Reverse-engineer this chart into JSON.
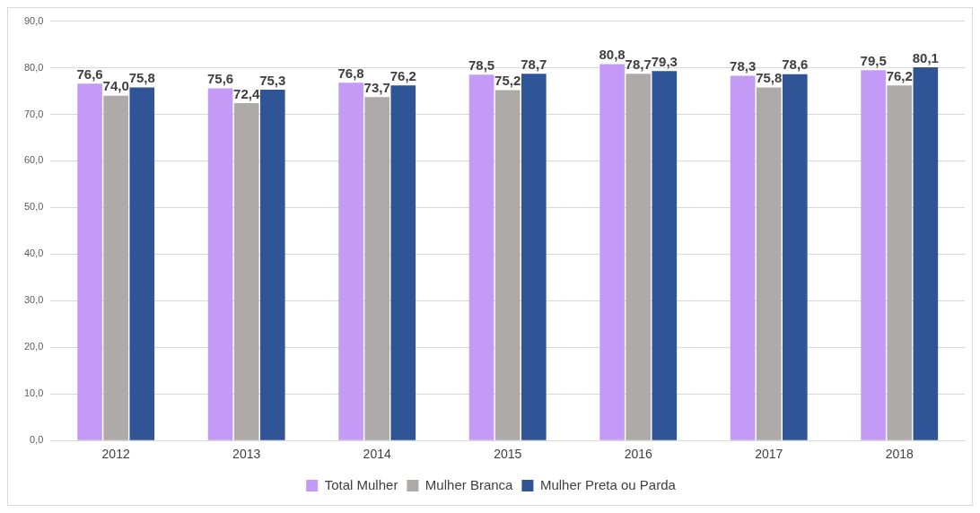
{
  "chart_data": {
    "type": "bar",
    "categories": [
      "2012",
      "2013",
      "2014",
      "2015",
      "2016",
      "2017",
      "2018"
    ],
    "series": [
      {
        "name": "Total Mulher",
        "color": "#c39bf7",
        "values": [
          76.6,
          75.6,
          76.8,
          78.5,
          80.8,
          78.3,
          79.5
        ],
        "value_labels": [
          "76,6",
          "75,6",
          "76,8",
          "78,5",
          "80,8",
          "78,3",
          "79,5"
        ]
      },
      {
        "name": "Mulher Branca",
        "color": "#aeaaaa",
        "values": [
          74.0,
          72.4,
          73.7,
          75.2,
          78.7,
          75.8,
          76.2
        ],
        "value_labels": [
          "74,0",
          "72,4",
          "73,7",
          "75,2",
          "78,7",
          "75,8",
          "76,2"
        ]
      },
      {
        "name": "Mulher Preta ou Parda",
        "color": "#2f5597",
        "values": [
          75.8,
          75.3,
          76.2,
          78.7,
          79.3,
          78.6,
          80.1
        ],
        "value_labels": [
          "75,8",
          "75,3",
          "76,2",
          "78,7",
          "79,3",
          "78,6",
          "80,1"
        ]
      }
    ],
    "ylim": [
      0,
      90
    ],
    "yticks": [
      {
        "value": 0,
        "label": "0,0"
      },
      {
        "value": 10,
        "label": "10,0"
      },
      {
        "value": 20,
        "label": "20,0"
      },
      {
        "value": 30,
        "label": "30,0"
      },
      {
        "value": 40,
        "label": "40,0"
      },
      {
        "value": 50,
        "label": "50,0"
      },
      {
        "value": 60,
        "label": "60,0"
      },
      {
        "value": 70,
        "label": "70,0"
      },
      {
        "value": 80,
        "label": "80,0"
      },
      {
        "value": 90,
        "label": "90,0"
      }
    ],
    "grid": "y",
    "legend": "bottom"
  }
}
